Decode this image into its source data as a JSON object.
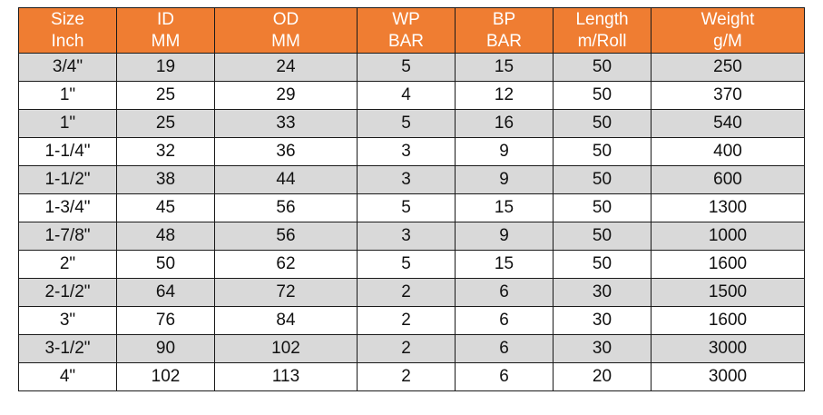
{
  "theme": {
    "header_bg": "#ef7d32",
    "header_text": "#ffffff",
    "row_shaded": "#d9d9d9",
    "row_plain": "#ffffff",
    "border": "#1a1a1a"
  },
  "table": {
    "headers": [
      {
        "line1": "Size",
        "line2": "Inch"
      },
      {
        "line1": "ID",
        "line2": "MM"
      },
      {
        "line1": "OD",
        "line2": "MM"
      },
      {
        "line1": "WP",
        "line2": "BAR"
      },
      {
        "line1": "BP",
        "line2": "BAR"
      },
      {
        "line1": "Length",
        "line2": "m/Roll"
      },
      {
        "line1": "Weight",
        "line2": "g/M"
      }
    ],
    "rows": [
      [
        "3/4\"",
        "19",
        "24",
        "5",
        "15",
        "50",
        "250"
      ],
      [
        "1\"",
        "25",
        "29",
        "4",
        "12",
        "50",
        "370"
      ],
      [
        "1\"",
        "25",
        "33",
        "5",
        "16",
        "50",
        "540"
      ],
      [
        "1-1/4\"",
        "32",
        "36",
        "3",
        "9",
        "50",
        "400"
      ],
      [
        "1-1/2\"",
        "38",
        "44",
        "3",
        "9",
        "50",
        "600"
      ],
      [
        "1-3/4\"",
        "45",
        "56",
        "5",
        "15",
        "50",
        "1300"
      ],
      [
        "1-7/8\"",
        "48",
        "56",
        "3",
        "9",
        "50",
        "1000"
      ],
      [
        "2\"",
        "50",
        "62",
        "5",
        "15",
        "50",
        "1600"
      ],
      [
        "2-1/2\"",
        "64",
        "72",
        "2",
        "6",
        "30",
        "1500"
      ],
      [
        "3\"",
        "76",
        "84",
        "2",
        "6",
        "30",
        "1600"
      ],
      [
        "3-1/2\"",
        "90",
        "102",
        "2",
        "6",
        "30",
        "3000"
      ],
      [
        "4\"",
        "102",
        "113",
        "2",
        "6",
        "20",
        "3000"
      ]
    ]
  }
}
